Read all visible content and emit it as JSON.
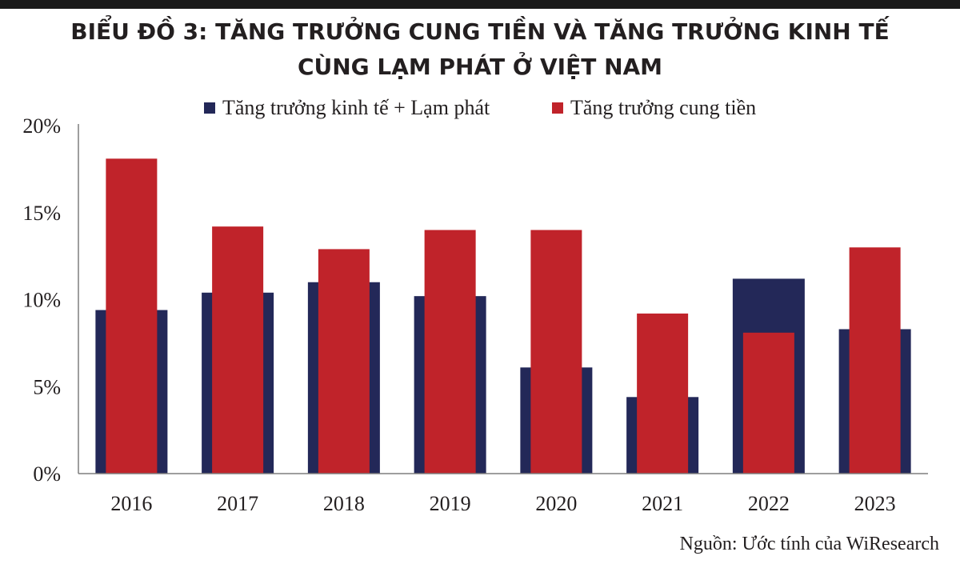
{
  "header": {
    "title_line1": "BIỂU ĐỒ 3: TĂNG TRƯỞNG CUNG TIỀN VÀ TĂNG TRƯỞNG KINH TẾ",
    "title_line2": "CÙNG LẠM PHÁT Ở VIỆT NAM"
  },
  "source": "Nguồn: Ước tính của WiResearch",
  "colors": {
    "navy": "#232858",
    "red": "#c0232a",
    "axis": "#7f7f7f"
  },
  "chart_data": {
    "type": "bar",
    "title": "BIỂU ĐỒ 3: TĂNG TRƯỞNG CUNG TIỀN VÀ TĂNG TRƯỞNG KINH TẾ CÙNG LẠM PHÁT Ở VIỆT NAM",
    "categories": [
      "2016",
      "2017",
      "2018",
      "2019",
      "2020",
      "2021",
      "2022",
      "2023"
    ],
    "series": [
      {
        "name": "Tăng trưởng kinh tế + Lạm phát",
        "color": "#232858",
        "values": [
          9.4,
          10.4,
          11.0,
          10.2,
          6.1,
          4.4,
          11.2,
          8.3
        ]
      },
      {
        "name": "Tăng trưởng cung tiền",
        "color": "#c0232a",
        "values": [
          18.1,
          14.2,
          12.9,
          14.0,
          14.0,
          9.2,
          8.1,
          13.0
        ]
      }
    ],
    "yticks": [
      "0%",
      "5%",
      "10%",
      "15%",
      "20%"
    ],
    "ylim": [
      0,
      20
    ],
    "grid": false,
    "legend_position": "top"
  }
}
